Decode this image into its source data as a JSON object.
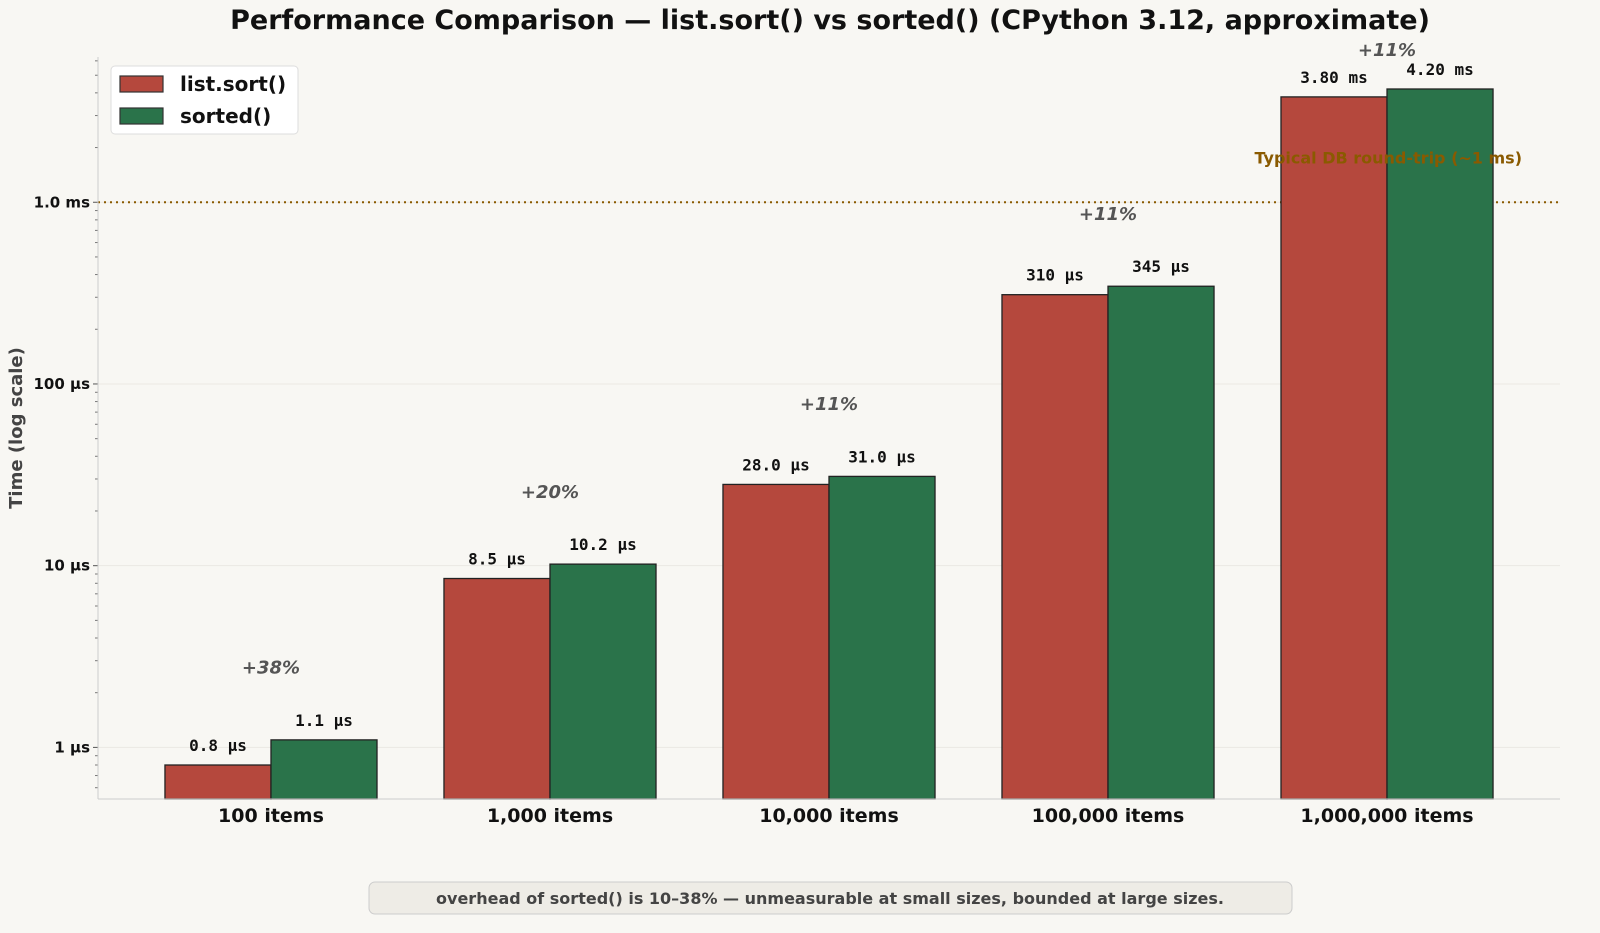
{
  "chart_data": {
    "type": "bar",
    "title": "Performance Comparison  —  list.sort()  vs  sorted()   (CPython 3.12, approximate)",
    "xlabel": "",
    "ylabel": "Time  (log scale)",
    "yscale": "log",
    "yunit": "µs",
    "ylim": [
      0.52,
      6300
    ],
    "yticks": [
      {
        "value": 1,
        "label": "1 µs"
      },
      {
        "value": 10,
        "label": "10 µs"
      },
      {
        "value": 100,
        "label": "100 µs"
      },
      {
        "value": 1000,
        "label": "1.0 ms"
      }
    ],
    "grid": true,
    "legend_position": "top-left",
    "categories": [
      "100 items",
      "1,000 items",
      "10,000 items",
      "100,000 items",
      "1,000,000 items"
    ],
    "series": [
      {
        "name": "list.sort()",
        "color": "#b5483d",
        "values": [
          0.8,
          8.5,
          28.0,
          310,
          3800
        ],
        "labels": [
          "0.8 µs",
          "8.5 µs",
          "28.0 µs",
          "310 µs",
          "3.80 ms"
        ]
      },
      {
        "name": "sorted()",
        "color": "#2a734a",
        "values": [
          1.1,
          10.2,
          31.0,
          345,
          4200
        ],
        "labels": [
          "1.1 µs",
          "10.2 µs",
          "31.0 µs",
          "345 µs",
          "4.20 ms"
        ]
      }
    ],
    "overhead_annotations": [
      "+38%",
      "+20%",
      "+11%",
      "+11%",
      "+11%"
    ],
    "reference_line": {
      "value": 1000,
      "label": "Typical DB round-trip  (~1 ms)",
      "color": "#8a5a00",
      "style": "dotted"
    },
    "footnote": "overhead of  sorted()  is 10–38% — unmeasurable at small sizes, bounded at large sizes."
  }
}
